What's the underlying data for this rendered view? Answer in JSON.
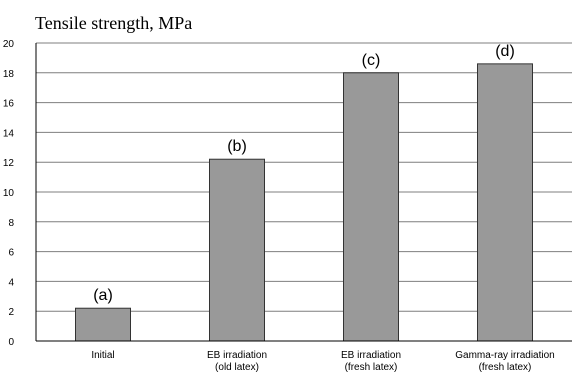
{
  "chart_data": {
    "type": "bar",
    "title": "Tensile strength, MPa",
    "categories": [
      [
        "Initial"
      ],
      [
        "EB irradiation",
        "(old latex)"
      ],
      [
        "EB irradiation",
        "(fresh latex)"
      ],
      [
        "Gamma-ray irradiation",
        "(fresh latex)"
      ]
    ],
    "values": [
      2.2,
      12.2,
      18.0,
      18.6
    ],
    "data_labels": [
      "(a)",
      "(b)",
      "(c)",
      "(d)"
    ],
    "ylim": [
      0,
      20
    ],
    "yticks": [
      0,
      2,
      4,
      6,
      8,
      10,
      12,
      14,
      16,
      18,
      20
    ],
    "grid": true,
    "colors": {
      "bar": "#999999",
      "bar_edge": "#333333",
      "grid": "#7f7f7f"
    }
  }
}
